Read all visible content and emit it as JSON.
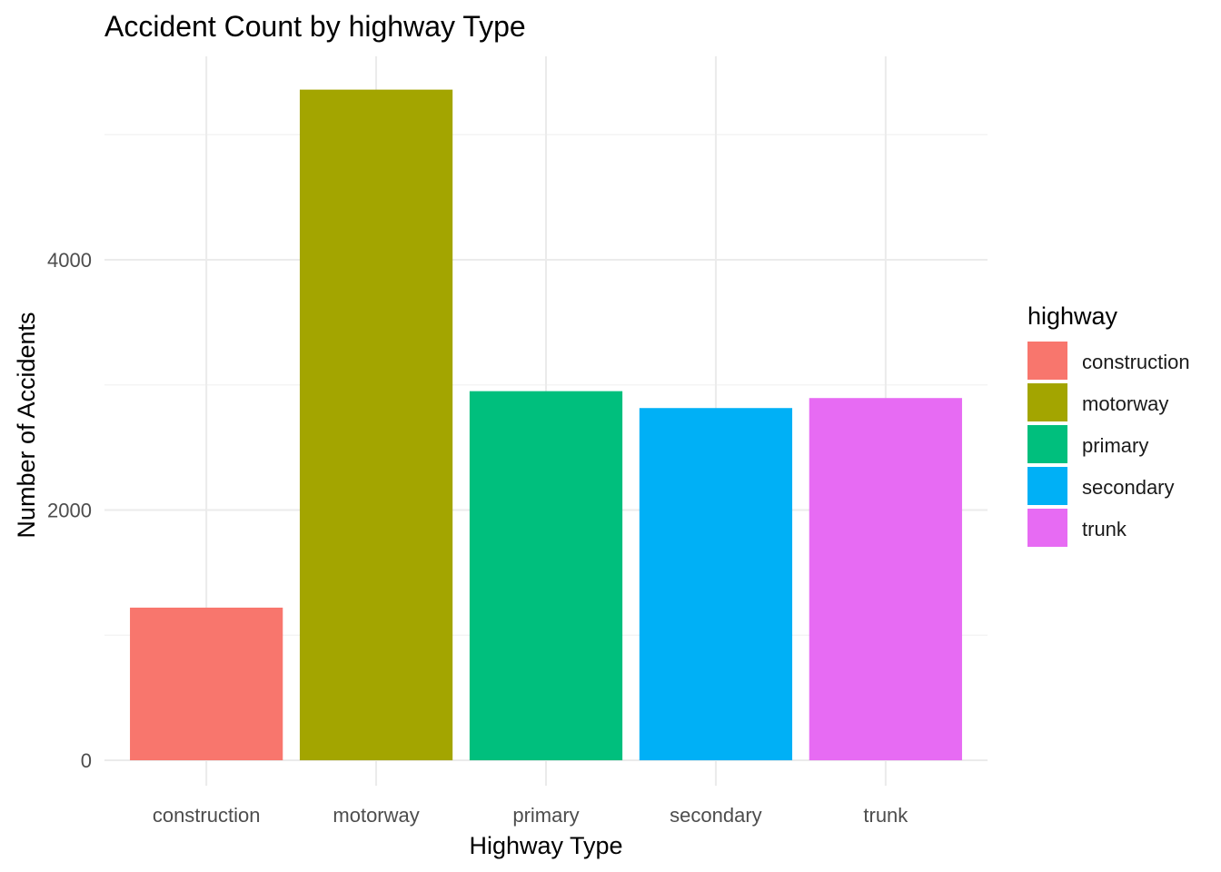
{
  "chart_data": {
    "type": "bar",
    "title": "Accident Count by highway Type",
    "xlabel": "Highway Type",
    "ylabel": "Number of Accidents",
    "categories": [
      "construction",
      "motorway",
      "primary",
      "secondary",
      "trunk"
    ],
    "values": [
      1220,
      5360,
      2950,
      2815,
      2895
    ],
    "colors": [
      "#F8766D",
      "#A3A500",
      "#00BF7D",
      "#00B0F6",
      "#E76BF3"
    ],
    "ylim": [
      0,
      5630
    ],
    "yticks": [
      0,
      2000,
      4000
    ],
    "grid": true,
    "legend": {
      "title": "highway",
      "position": "right",
      "entries": [
        "construction",
        "motorway",
        "primary",
        "secondary",
        "trunk"
      ]
    }
  }
}
